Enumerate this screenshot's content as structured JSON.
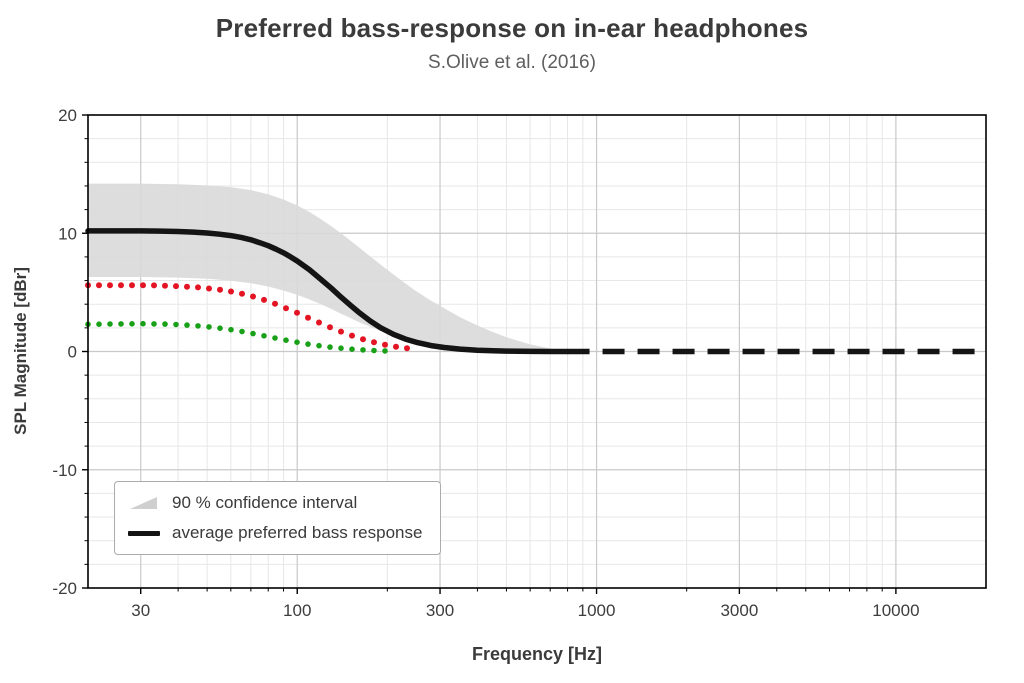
{
  "chart_data": {
    "type": "line",
    "title": "Preferred bass-response on in-ear headphones",
    "subtitle": "S.Olive et al. (2016)",
    "xlabel": "Frequency [Hz]",
    "ylabel": "SPL Magnitude [dBr]",
    "x_scale": "log",
    "xlim": [
      20,
      20000
    ],
    "ylim": [
      -20,
      20
    ],
    "x_ticks": [
      30,
      100,
      300,
      1000,
      3000,
      10000
    ],
    "y_ticks": [
      -20,
      -10,
      0,
      10,
      20
    ],
    "y_minor_step": 2,
    "grid": true,
    "legend_position": "lower left",
    "colors": {
      "band": "#d9d9d9",
      "grid_major": "#c9c9c9",
      "grid_minor": "#e7e7e7",
      "axis": "#000000",
      "mean_line": "#141414",
      "red_dots": "#e31423",
      "green_dots": "#18a118",
      "tick_label": "#3d3d3d"
    },
    "legend_entries": [
      {
        "label": "90 % confidence interval",
        "swatch": "band"
      },
      {
        "label": "average preferred bass response",
        "swatch": "line"
      }
    ],
    "band": {
      "name": "90 % confidence interval",
      "upper": [
        [
          20,
          14.2
        ],
        [
          30,
          14.2
        ],
        [
          40,
          14.15
        ],
        [
          50,
          14.05
        ],
        [
          60,
          13.9
        ],
        [
          70,
          13.65
        ],
        [
          80,
          13.3
        ],
        [
          90,
          12.85
        ],
        [
          100,
          12.35
        ],
        [
          110,
          11.8
        ],
        [
          120,
          11.2
        ],
        [
          130,
          10.6
        ],
        [
          140,
          10.0
        ],
        [
          150,
          9.4
        ],
        [
          160,
          8.85
        ],
        [
          175,
          8.05
        ],
        [
          190,
          7.35
        ],
        [
          210,
          6.5
        ],
        [
          230,
          5.75
        ],
        [
          250,
          5.1
        ],
        [
          280,
          4.3
        ],
        [
          310,
          3.65
        ],
        [
          350,
          2.9
        ],
        [
          400,
          2.2
        ],
        [
          450,
          1.65
        ],
        [
          500,
          1.2
        ],
        [
          600,
          0.6
        ],
        [
          700,
          0.25
        ],
        [
          800,
          0.08
        ],
        [
          900,
          0
        ]
      ],
      "lower": [
        [
          20,
          6.3
        ],
        [
          30,
          6.3
        ],
        [
          40,
          6.25
        ],
        [
          50,
          6.15
        ],
        [
          60,
          6.0
        ],
        [
          70,
          5.78
        ],
        [
          80,
          5.5
        ],
        [
          90,
          5.15
        ],
        [
          100,
          4.8
        ],
        [
          110,
          4.4
        ],
        [
          120,
          4.0
        ],
        [
          130,
          3.6
        ],
        [
          140,
          3.2
        ],
        [
          150,
          2.85
        ],
        [
          160,
          2.5
        ],
        [
          175,
          2.1
        ],
        [
          190,
          1.75
        ],
        [
          210,
          1.38
        ],
        [
          230,
          1.08
        ],
        [
          250,
          0.85
        ],
        [
          280,
          0.6
        ],
        [
          310,
          0.42
        ],
        [
          350,
          0.26
        ],
        [
          400,
          0.14
        ],
        [
          450,
          0.07
        ],
        [
          500,
          0.03
        ],
        [
          600,
          0
        ],
        [
          700,
          0
        ],
        [
          800,
          0
        ],
        [
          900,
          0
        ]
      ]
    },
    "series": [
      {
        "id": "mean",
        "name": "average preferred bass response",
        "style": "solid-then-dashed",
        "color": "#141414",
        "line_width": 5.5,
        "dashed_from": 800,
        "points": [
          [
            20,
            10.2
          ],
          [
            25,
            10.2
          ],
          [
            30,
            10.2
          ],
          [
            35,
            10.18
          ],
          [
            40,
            10.15
          ],
          [
            45,
            10.1
          ],
          [
            50,
            10.02
          ],
          [
            55,
            9.92
          ],
          [
            60,
            9.8
          ],
          [
            65,
            9.65
          ],
          [
            70,
            9.45
          ],
          [
            75,
            9.2
          ],
          [
            80,
            8.95
          ],
          [
            85,
            8.65
          ],
          [
            90,
            8.35
          ],
          [
            95,
            8.0
          ],
          [
            100,
            7.65
          ],
          [
            110,
            6.9
          ],
          [
            120,
            6.1
          ],
          [
            130,
            5.35
          ],
          [
            140,
            4.6
          ],
          [
            150,
            3.95
          ],
          [
            160,
            3.35
          ],
          [
            175,
            2.6
          ],
          [
            190,
            2.0
          ],
          [
            210,
            1.45
          ],
          [
            230,
            1.05
          ],
          [
            250,
            0.78
          ],
          [
            280,
            0.5
          ],
          [
            310,
            0.34
          ],
          [
            350,
            0.2
          ],
          [
            400,
            0.11
          ],
          [
            450,
            0.06
          ],
          [
            500,
            0.03
          ],
          [
            600,
            0.01
          ],
          [
            700,
            0.0
          ],
          [
            800,
            0.0
          ]
        ]
      },
      {
        "id": "red-dotted",
        "name": "red dotted response",
        "style": "dots",
        "color": "#e31423",
        "dot_radius": 3.0,
        "dot_spacing": 11,
        "points": [
          [
            20,
            5.6
          ],
          [
            25,
            5.6
          ],
          [
            30,
            5.6
          ],
          [
            35,
            5.58
          ],
          [
            40,
            5.52
          ],
          [
            45,
            5.45
          ],
          [
            50,
            5.35
          ],
          [
            55,
            5.22
          ],
          [
            60,
            5.08
          ],
          [
            65,
            4.9
          ],
          [
            70,
            4.7
          ],
          [
            75,
            4.48
          ],
          [
            80,
            4.25
          ],
          [
            85,
            4.0
          ],
          [
            90,
            3.75
          ],
          [
            95,
            3.5
          ],
          [
            100,
            3.27
          ],
          [
            110,
            2.8
          ],
          [
            120,
            2.38
          ],
          [
            130,
            2.0
          ],
          [
            140,
            1.68
          ],
          [
            150,
            1.4
          ],
          [
            160,
            1.16
          ],
          [
            175,
            0.86
          ],
          [
            190,
            0.64
          ],
          [
            205,
            0.48
          ],
          [
            220,
            0.35
          ],
          [
            235,
            0.26
          ],
          [
            245,
            0.2
          ]
        ]
      },
      {
        "id": "green-dotted",
        "name": "green dotted response",
        "style": "dots",
        "color": "#18a118",
        "dot_radius": 2.8,
        "dot_spacing": 11,
        "points": [
          [
            20,
            2.3
          ],
          [
            25,
            2.33
          ],
          [
            30,
            2.35
          ],
          [
            35,
            2.33
          ],
          [
            40,
            2.28
          ],
          [
            45,
            2.2
          ],
          [
            50,
            2.1
          ],
          [
            55,
            1.98
          ],
          [
            60,
            1.85
          ],
          [
            65,
            1.7
          ],
          [
            70,
            1.55
          ],
          [
            75,
            1.4
          ],
          [
            80,
            1.26
          ],
          [
            85,
            1.12
          ],
          [
            90,
            1.0
          ],
          [
            95,
            0.88
          ],
          [
            100,
            0.78
          ],
          [
            110,
            0.6
          ],
          [
            120,
            0.47
          ],
          [
            130,
            0.36
          ],
          [
            140,
            0.28
          ],
          [
            150,
            0.21
          ],
          [
            160,
            0.16
          ],
          [
            175,
            0.1
          ],
          [
            190,
            0.06
          ],
          [
            205,
            0.04
          ]
        ]
      }
    ]
  }
}
